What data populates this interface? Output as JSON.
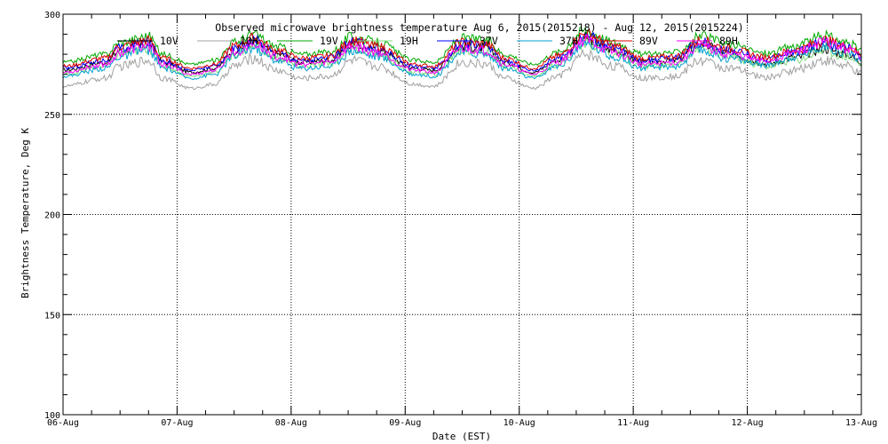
{
  "chart_data": {
    "type": "line",
    "title": "Observed microwave brightness temperature Aug  6, 2015(2015218) - Aug 12, 2015(2015224)",
    "xlabel": "Date (EST)",
    "ylabel": "Brightness Temperature, Deg K",
    "xlim": [
      "2015-08-06",
      "2015-08-13"
    ],
    "ylim": [
      100,
      300
    ],
    "yticks": [
      100,
      150,
      200,
      250,
      300
    ],
    "xticks": [
      "2015-08-06",
      "2015-08-07",
      "2015-08-08",
      "2015-08-09",
      "2015-08-10",
      "2015-08-11",
      "2015-08-12",
      "2015-08-13"
    ],
    "xtick_labels": [
      "06-Aug",
      "07-Aug",
      "08-Aug",
      "09-Aug",
      "10-Aug",
      "11-Aug",
      "12-Aug",
      "13-Aug"
    ],
    "grid": true,
    "legend_position": "top",
    "baseline": [
      {
        "x": "2015-08-06T00:00",
        "y": 272
      },
      {
        "x": "2015-08-06T09:00",
        "y": 276
      },
      {
        "x": "2015-08-06T12:00",
        "y": 282
      },
      {
        "x": "2015-08-06T18:00",
        "y": 285
      },
      {
        "x": "2015-08-06T21:00",
        "y": 276
      },
      {
        "x": "2015-08-07T03:00",
        "y": 271
      },
      {
        "x": "2015-08-07T08:00",
        "y": 273
      },
      {
        "x": "2015-08-07T12:00",
        "y": 282
      },
      {
        "x": "2015-08-07T16:00",
        "y": 286
      },
      {
        "x": "2015-08-07T21:00",
        "y": 280
      },
      {
        "x": "2015-08-08T02:00",
        "y": 276
      },
      {
        "x": "2015-08-08T08:00",
        "y": 277
      },
      {
        "x": "2015-08-08T13:00",
        "y": 285
      },
      {
        "x": "2015-08-08T18:00",
        "y": 282
      },
      {
        "x": "2015-08-09T02:00",
        "y": 273
      },
      {
        "x": "2015-08-09T06:00",
        "y": 272
      },
      {
        "x": "2015-08-09T12:00",
        "y": 284
      },
      {
        "x": "2015-08-09T17:00",
        "y": 283
      },
      {
        "x": "2015-08-09T21:00",
        "y": 276
      },
      {
        "x": "2015-08-10T03:00",
        "y": 271
      },
      {
        "x": "2015-08-10T08:00",
        "y": 277
      },
      {
        "x": "2015-08-10T14:00",
        "y": 288
      },
      {
        "x": "2015-08-10T20:00",
        "y": 282
      },
      {
        "x": "2015-08-11T02:00",
        "y": 276
      },
      {
        "x": "2015-08-11T09:00",
        "y": 277
      },
      {
        "x": "2015-08-11T14:00",
        "y": 285
      },
      {
        "x": "2015-08-11T20:00",
        "y": 281
      },
      {
        "x": "2015-08-12T04:00",
        "y": 277
      },
      {
        "x": "2015-08-12T10:00",
        "y": 281
      },
      {
        "x": "2015-08-12T16:00",
        "y": 286
      },
      {
        "x": "2015-08-12T21:00",
        "y": 283
      },
      {
        "x": "2015-08-13T00:00",
        "y": 279
      }
    ],
    "series": [
      {
        "name": "10V",
        "color": "#000000",
        "offset": 0,
        "tail_offset": -3
      },
      {
        "name": "10H",
        "color": "#a0a0a0",
        "offset": -8,
        "tail_offset": -9
      },
      {
        "name": "19V",
        "color": "#00aa00",
        "offset": 4,
        "tail_offset": 3
      },
      {
        "name": "19H",
        "color": "#7ddc7d",
        "offset": -2,
        "tail_offset": -4
      },
      {
        "name": "37V",
        "color": "#0000ff",
        "offset": 1,
        "tail_offset": 0
      },
      {
        "name": "37H",
        "color": "#00a0d0",
        "offset": -3,
        "tail_offset": -2
      },
      {
        "name": "89V",
        "color": "#e00000",
        "offset": 2,
        "tail_offset": 1
      },
      {
        "name": "89H",
        "color": "#ff00ff",
        "offset": -1,
        "tail_offset": 0
      }
    ]
  }
}
